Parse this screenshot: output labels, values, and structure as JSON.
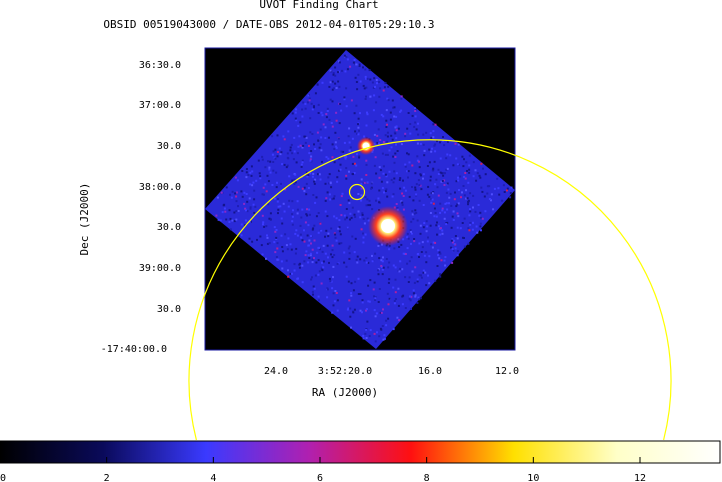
{
  "chart_data": {
    "type": "heatmap",
    "title": "UVOT Finding Chart",
    "subtitle": "OBSID 00519043000 / DATE-OBS 2012-04-01T05:29:10.3",
    "xlabel": "RA (J2000)",
    "ylabel": "Dec (J2000)",
    "x_ticks": [
      "24.0",
      "3:52:20.0",
      "16.0",
      "12.0"
    ],
    "y_ticks": [
      "36:30.0",
      "37:00.0",
      "30.0",
      "38:00.0",
      "30.0",
      "39:00.0",
      "30.0",
      "-17:40:00.0"
    ],
    "colorbar": {
      "ticks": [
        "0",
        "2",
        "4",
        "6",
        "8",
        "10",
        "12"
      ],
      "values": [
        0,
        2,
        4,
        6,
        8,
        10,
        12
      ],
      "range": [
        0,
        13.5
      ],
      "colormap": [
        "#000000",
        "#0a0a5a",
        "#3a3aff",
        "#b020b0",
        "#ff1010",
        "#ffe000",
        "#ffffc8",
        "#ffffff"
      ]
    },
    "grid": false,
    "overlays": [
      {
        "name": "source-region-circle",
        "color": "#ffff00"
      },
      {
        "name": "error-circle",
        "color": "#ffff00"
      }
    ],
    "bright_sources": [
      {
        "name": "bright-source-main",
        "color": "#ffffff"
      },
      {
        "name": "bright-source-secondary",
        "color": "#ffffff"
      }
    ],
    "image_colors": {
      "background": "#000000",
      "field": "#2a2ad8",
      "frame": "#1a1aa0"
    }
  }
}
